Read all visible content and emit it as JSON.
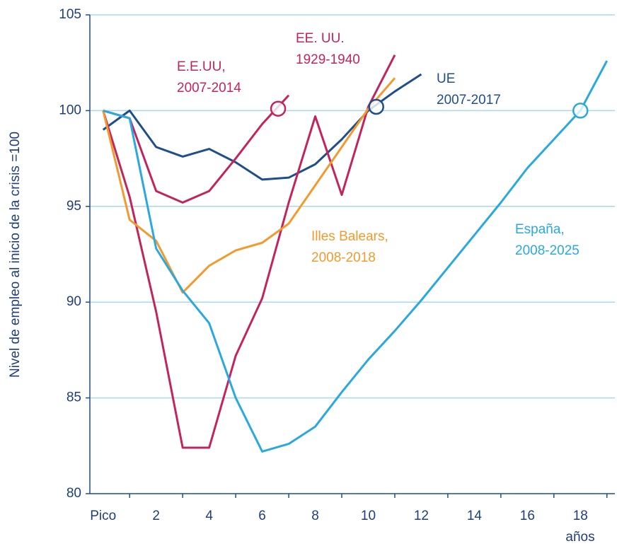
{
  "chart_data": {
    "type": "line",
    "y_label": "Nivel de empleo al inicio de la crisis =100",
    "x_label": "años",
    "xlim": [
      -0.5,
      19.3
    ],
    "ylim": [
      80,
      105
    ],
    "xticks": [
      {
        "value": 0,
        "label": "Pico"
      },
      2,
      4,
      6,
      8,
      10,
      12,
      14,
      16,
      18
    ],
    "yticks": [
      80,
      85,
      90,
      95,
      100,
      105
    ],
    "grid": true,
    "grid_color": "#a9d8ee",
    "axis_color": "#1f4e8c",
    "series": [
      {
        "name": [
          "UE",
          "2007-2017"
        ],
        "color": "#1f4e8c",
        "x": [
          0,
          1,
          2,
          3,
          4,
          5,
          6,
          7,
          8,
          9,
          10,
          11,
          12
        ],
        "values": [
          99.0,
          100.0,
          98.1,
          97.6,
          98.0,
          97.3,
          96.4,
          96.5,
          97.2,
          98.5,
          100.0,
          101.0,
          101.9
        ]
      },
      {
        "name": [
          "E.E.UU,",
          "2007-2014"
        ],
        "color": "#c2245e",
        "x": [
          0,
          1,
          2,
          3,
          4,
          5,
          6,
          7
        ],
        "values": [
          100.0,
          99.6,
          95.8,
          95.2,
          95.8,
          97.5,
          99.3,
          100.8
        ]
      },
      {
        "name": [
          "EE. UU.",
          "1929-1940"
        ],
        "color": "#c2245e",
        "x": [
          0,
          1,
          2,
          3,
          4,
          5,
          6,
          7,
          8,
          9,
          10,
          11
        ],
        "values": [
          100.0,
          95.5,
          89.5,
          82.4,
          82.4,
          87.2,
          90.2,
          95.2,
          99.7,
          95.6,
          100.2,
          102.9
        ]
      },
      {
        "name": [
          "Illes Balears,",
          "2008-2018"
        ],
        "color": "#f39a2e",
        "x": [
          0,
          1,
          2,
          3,
          4,
          5,
          6,
          7,
          8,
          9,
          10,
          11
        ],
        "values": [
          100.0,
          94.3,
          93.2,
          90.5,
          91.9,
          92.7,
          93.1,
          94.1,
          96.1,
          98.1,
          100.1,
          101.7
        ]
      },
      {
        "name": [
          "España,",
          "2008-2025"
        ],
        "color": "#2aa8e0",
        "x": [
          0,
          1,
          2,
          3,
          4,
          5,
          6,
          7,
          8,
          9,
          10,
          11,
          12,
          13,
          14,
          15,
          16,
          17,
          18,
          19
        ],
        "values": [
          100.0,
          99.6,
          92.8,
          90.6,
          88.9,
          85.0,
          82.2,
          82.6,
          83.5,
          85.3,
          87.0,
          88.5,
          90.1,
          91.8,
          93.5,
          95.2,
          97.0,
          98.5,
          100.0,
          102.6
        ]
      }
    ],
    "highlights": [
      {
        "x": 6.6,
        "y": 100.1,
        "color": "#c2245e"
      },
      {
        "x": 10.3,
        "y": 100.2,
        "color": "#1f4e8c"
      },
      {
        "x": 18,
        "y": 100.0,
        "color": "#2aa8e0"
      }
    ]
  }
}
